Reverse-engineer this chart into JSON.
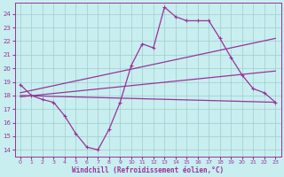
{
  "xlabel": "Windchill (Refroidissement éolien,°C)",
  "background_color": "#c8eef0",
  "grid_color": "#a0cccc",
  "line_color": "#993399",
  "x_ticks": [
    0,
    1,
    2,
    3,
    4,
    5,
    6,
    7,
    8,
    9,
    10,
    11,
    12,
    13,
    14,
    15,
    16,
    17,
    18,
    19,
    20,
    21,
    22,
    23
  ],
  "y_ticks": [
    14,
    15,
    16,
    17,
    18,
    19,
    20,
    21,
    22,
    23,
    24
  ],
  "ylim": [
    13.5,
    24.8
  ],
  "xlim": [
    -0.5,
    23.5
  ],
  "curve1_x": [
    0,
    1,
    2,
    3,
    4,
    5,
    6,
    7,
    8,
    9,
    10,
    11,
    12,
    13,
    14,
    15,
    16,
    17,
    18,
    19,
    20,
    21,
    22,
    23
  ],
  "curve1_y": [
    18.8,
    18.0,
    17.7,
    17.5,
    16.5,
    15.2,
    14.2,
    14.0,
    15.5,
    17.5,
    20.2,
    21.8,
    21.5,
    24.5,
    23.8,
    23.5,
    23.5,
    23.5,
    22.2,
    20.8,
    19.5,
    18.5,
    18.2,
    17.5
  ],
  "curve2_x": [
    0,
    23
  ],
  "curve2_y": [
    18.2,
    22.2
  ],
  "curve3_x": [
    0,
    23
  ],
  "curve3_y": [
    17.9,
    19.8
  ],
  "curve4_x": [
    0,
    23
  ],
  "curve4_y": [
    18.0,
    17.5
  ]
}
